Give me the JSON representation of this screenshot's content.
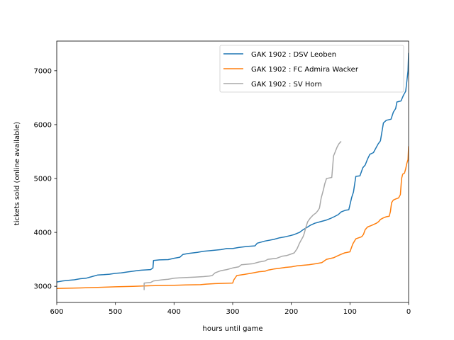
{
  "chart_data": {
    "type": "line",
    "xlabel": "hours until game",
    "ylabel": "tickets sold (online available)",
    "xlim": [
      600,
      0
    ],
    "ylim": [
      2700,
      7550
    ],
    "x_inverted": true,
    "xticks": [
      600,
      500,
      400,
      300,
      200,
      100,
      0
    ],
    "yticks": [
      3000,
      4000,
      5000,
      6000,
      7000
    ],
    "grid": false,
    "legend_position": "top-right",
    "series": [
      {
        "name": "GAK 1902 : DSV Leoben",
        "color": "#1f77b4",
        "points": [
          [
            600,
            3080
          ],
          [
            590,
            3100
          ],
          [
            580,
            3110
          ],
          [
            570,
            3120
          ],
          [
            560,
            3140
          ],
          [
            550,
            3150
          ],
          [
            540,
            3180
          ],
          [
            530,
            3210
          ],
          [
            520,
            3215
          ],
          [
            510,
            3225
          ],
          [
            500,
            3240
          ],
          [
            490,
            3250
          ],
          [
            480,
            3265
          ],
          [
            470,
            3280
          ],
          [
            460,
            3295
          ],
          [
            455,
            3300
          ],
          [
            440,
            3310
          ],
          [
            436,
            3340
          ],
          [
            435,
            3480
          ],
          [
            425,
            3490
          ],
          [
            410,
            3495
          ],
          [
            400,
            3520
          ],
          [
            390,
            3540
          ],
          [
            385,
            3590
          ],
          [
            375,
            3610
          ],
          [
            360,
            3630
          ],
          [
            350,
            3650
          ],
          [
            340,
            3660
          ],
          [
            320,
            3680
          ],
          [
            310,
            3700
          ],
          [
            300,
            3700
          ],
          [
            290,
            3720
          ],
          [
            275,
            3740
          ],
          [
            262,
            3750
          ],
          [
            258,
            3800
          ],
          [
            245,
            3840
          ],
          [
            230,
            3870
          ],
          [
            220,
            3900
          ],
          [
            210,
            3920
          ],
          [
            202,
            3940
          ],
          [
            195,
            3960
          ],
          [
            186,
            4000
          ],
          [
            180,
            4050
          ],
          [
            175,
            4080
          ],
          [
            168,
            4130
          ],
          [
            160,
            4170
          ],
          [
            150,
            4200
          ],
          [
            140,
            4230
          ],
          [
            133,
            4260
          ],
          [
            127,
            4290
          ],
          [
            120,
            4330
          ],
          [
            115,
            4380
          ],
          [
            108,
            4410
          ],
          [
            102,
            4420
          ],
          [
            97,
            4650
          ],
          [
            94,
            4750
          ],
          [
            90,
            5040
          ],
          [
            83,
            5050
          ],
          [
            78,
            5200
          ],
          [
            74,
            5250
          ],
          [
            70,
            5360
          ],
          [
            66,
            5450
          ],
          [
            60,
            5480
          ],
          [
            52,
            5640
          ],
          [
            48,
            5700
          ],
          [
            43,
            6030
          ],
          [
            38,
            6080
          ],
          [
            30,
            6100
          ],
          [
            26,
            6230
          ],
          [
            22,
            6300
          ],
          [
            20,
            6420
          ],
          [
            13,
            6440
          ],
          [
            9,
            6540
          ],
          [
            5,
            6620
          ],
          [
            3,
            6800
          ],
          [
            1,
            7000
          ],
          [
            0,
            7330
          ]
        ]
      },
      {
        "name": "GAK 1902 : FC Admira Wacker",
        "color": "#ff7f0e",
        "points": [
          [
            600,
            2960
          ],
          [
            560,
            2970
          ],
          [
            530,
            2980
          ],
          [
            500,
            2990
          ],
          [
            470,
            3000
          ],
          [
            440,
            3010
          ],
          [
            400,
            3020
          ],
          [
            380,
            3025
          ],
          [
            355,
            3030
          ],
          [
            345,
            3040
          ],
          [
            330,
            3050
          ],
          [
            300,
            3060
          ],
          [
            298,
            3120
          ],
          [
            293,
            3200
          ],
          [
            280,
            3220
          ],
          [
            265,
            3250
          ],
          [
            255,
            3270
          ],
          [
            245,
            3280
          ],
          [
            240,
            3300
          ],
          [
            230,
            3320
          ],
          [
            220,
            3335
          ],
          [
            210,
            3350
          ],
          [
            200,
            3360
          ],
          [
            190,
            3380
          ],
          [
            180,
            3390
          ],
          [
            170,
            3400
          ],
          [
            158,
            3420
          ],
          [
            148,
            3440
          ],
          [
            140,
            3500
          ],
          [
            128,
            3530
          ],
          [
            122,
            3560
          ],
          [
            116,
            3590
          ],
          [
            109,
            3620
          ],
          [
            100,
            3640
          ],
          [
            97,
            3730
          ],
          [
            95,
            3790
          ],
          [
            90,
            3880
          ],
          [
            85,
            3900
          ],
          [
            80,
            3920
          ],
          [
            77,
            3960
          ],
          [
            74,
            4050
          ],
          [
            70,
            4100
          ],
          [
            63,
            4130
          ],
          [
            55,
            4170
          ],
          [
            51,
            4200
          ],
          [
            48,
            4240
          ],
          [
            43,
            4270
          ],
          [
            38,
            4290
          ],
          [
            33,
            4300
          ],
          [
            31,
            4390
          ],
          [
            29,
            4550
          ],
          [
            26,
            4600
          ],
          [
            22,
            4620
          ],
          [
            17,
            4640
          ],
          [
            14,
            4700
          ],
          [
            12,
            5000
          ],
          [
            10,
            5080
          ],
          [
            7,
            5100
          ],
          [
            5,
            5180
          ],
          [
            3,
            5280
          ],
          [
            1,
            5350
          ],
          [
            0,
            5600
          ]
        ]
      },
      {
        "name": "GAK 1902 : SV Horn",
        "color": "#a8a8a8",
        "points": [
          [
            451,
            2930
          ],
          [
            451,
            3060
          ],
          [
            440,
            3070
          ],
          [
            435,
            3100
          ],
          [
            420,
            3120
          ],
          [
            410,
            3130
          ],
          [
            400,
            3150
          ],
          [
            385,
            3160
          ],
          [
            375,
            3165
          ],
          [
            365,
            3170
          ],
          [
            350,
            3180
          ],
          [
            340,
            3190
          ],
          [
            335,
            3200
          ],
          [
            330,
            3250
          ],
          [
            320,
            3290
          ],
          [
            310,
            3310
          ],
          [
            300,
            3340
          ],
          [
            290,
            3360
          ],
          [
            285,
            3400
          ],
          [
            275,
            3410
          ],
          [
            265,
            3420
          ],
          [
            255,
            3450
          ],
          [
            245,
            3470
          ],
          [
            240,
            3500
          ],
          [
            225,
            3520
          ],
          [
            215,
            3560
          ],
          [
            208,
            3570
          ],
          [
            200,
            3600
          ],
          [
            195,
            3620
          ],
          [
            190,
            3700
          ],
          [
            186,
            3800
          ],
          [
            183,
            3860
          ],
          [
            180,
            3920
          ],
          [
            178,
            3980
          ],
          [
            175,
            4100
          ],
          [
            172,
            4200
          ],
          [
            168,
            4260
          ],
          [
            163,
            4320
          ],
          [
            158,
            4360
          ],
          [
            155,
            4400
          ],
          [
            152,
            4450
          ],
          [
            149,
            4640
          ],
          [
            145,
            4800
          ],
          [
            143,
            4900
          ],
          [
            140,
            5000
          ],
          [
            135,
            5010
          ],
          [
            131,
            5020
          ],
          [
            128,
            5420
          ],
          [
            125,
            5500
          ],
          [
            122,
            5580
          ],
          [
            119,
            5640
          ],
          [
            115,
            5690
          ]
        ]
      }
    ]
  }
}
